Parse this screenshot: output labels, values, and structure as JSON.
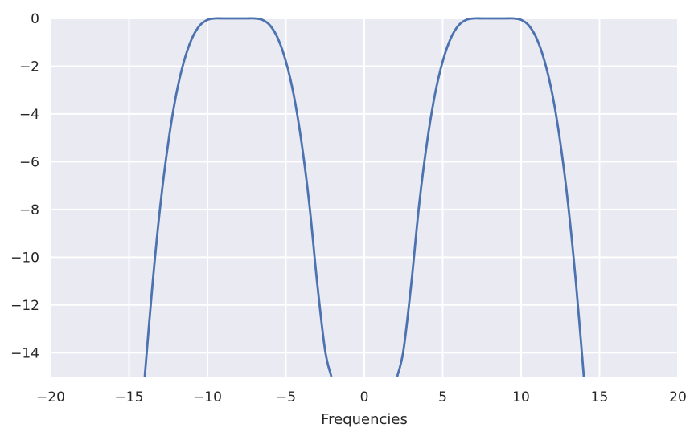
{
  "chart_data": {
    "type": "line",
    "title": "",
    "xlabel": "Frequencies",
    "ylabel": "",
    "xlim": [
      -20,
      20
    ],
    "ylim": [
      -15,
      0
    ],
    "xticks": [
      -20,
      -15,
      -10,
      -5,
      0,
      5,
      10,
      15,
      20
    ],
    "yticks": [
      0,
      -2,
      -4,
      -6,
      -8,
      -10,
      -12,
      -14
    ],
    "xtick_labels": [
      "−20",
      "−15",
      "−10",
      "−5",
      "0",
      "5",
      "10",
      "15",
      "20"
    ],
    "ytick_labels": [
      "0",
      "−2",
      "−4",
      "−6",
      "−8",
      "−10",
      "−12",
      "−14"
    ],
    "grid": true,
    "background": "#EAEAF2",
    "grid_color": "#FFFFFF",
    "series": [
      {
        "color": "#4C72B0",
        "x": [
          -14.0,
          -13.5,
          -13.0,
          -12.5,
          -12.0,
          -11.5,
          -11.0,
          -10.5,
          -10.0,
          -9.5,
          -9.0,
          -8.5,
          -8.0,
          -7.5,
          -7.0,
          -6.5,
          -6.0,
          -5.5,
          -5.0,
          -4.5,
          -4.0,
          -3.5,
          -3.0,
          -2.5,
          -2.1,
          2.1,
          2.5,
          3.0,
          3.5,
          4.0,
          4.5,
          5.0,
          5.5,
          6.0,
          6.5,
          7.0,
          7.5,
          8.0,
          8.5,
          9.0,
          9.5,
          10.0,
          10.5,
          11.0,
          11.5,
          12.0,
          12.5,
          13.0,
          13.5,
          14.0
        ],
        "y": [
          -15.0,
          -11.1,
          -7.8,
          -5.2,
          -3.2,
          -1.8,
          -0.85,
          -0.3,
          -0.06,
          0.0,
          0.0,
          0.0,
          0.0,
          0.0,
          0.0,
          -0.06,
          -0.3,
          -0.85,
          -1.8,
          -3.2,
          -5.2,
          -7.8,
          -11.1,
          -13.9,
          -15.0,
          -15.0,
          -13.9,
          -11.1,
          -7.8,
          -5.2,
          -3.2,
          -1.8,
          -0.85,
          -0.3,
          -0.06,
          0.0,
          0.0,
          0.0,
          0.0,
          0.0,
          0.0,
          -0.06,
          -0.3,
          -0.85,
          -1.8,
          -3.2,
          -5.2,
          -7.8,
          -11.1,
          -15.0
        ]
      }
    ]
  }
}
